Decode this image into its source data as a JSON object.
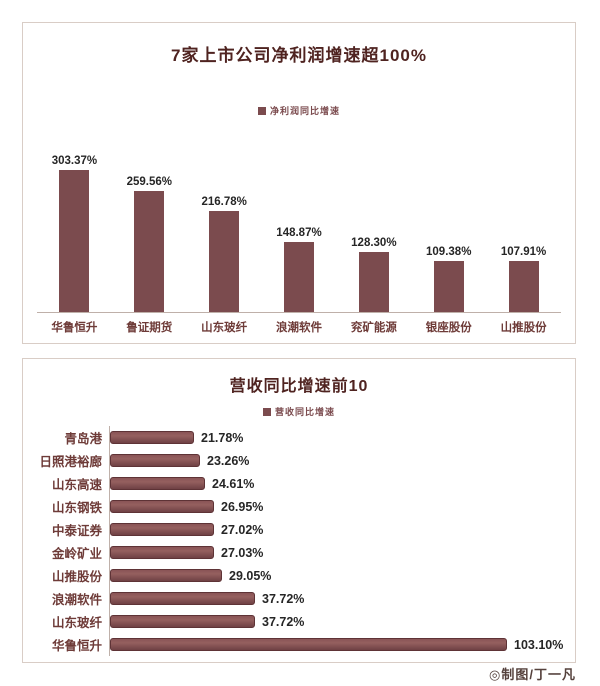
{
  "colors": {
    "bar": "#7b4b4e",
    "title": "#4f2320",
    "axis_label": "#6e3b38",
    "value_label": "#262626",
    "panel_border": "#d9cdc6",
    "axis_line": "#bfb0a9",
    "footer": "#55413c"
  },
  "chart_data": [
    {
      "type": "bar",
      "orientation": "vertical",
      "title": "7家上市公司净利润增速超100%",
      "legend": "净利润同比增速",
      "legend_position": "top-center",
      "grid": false,
      "categories": [
        "华鲁恒升",
        "鲁证期货",
        "山东玻纤",
        "浪潮软件",
        "兖矿能源",
        "银座股份",
        "山推股份"
      ],
      "values": [
        303.37,
        259.56,
        216.78,
        148.87,
        128.3,
        109.38,
        107.91
      ],
      "value_labels": [
        "303.37%",
        "259.56%",
        "216.78%",
        "148.87%",
        "128.30%",
        "109.38%",
        "107.91%"
      ],
      "ylim": [
        0,
        320
      ],
      "xlabel": "",
      "ylabel": ""
    },
    {
      "type": "bar",
      "orientation": "horizontal",
      "title": "营收同比增速前10",
      "legend": "营收同比增速",
      "legend_position": "top-center",
      "grid": false,
      "categories": [
        "青岛港",
        "日照港裕廊",
        "山东高速",
        "山东钢铁",
        "中泰证券",
        "金岭矿业",
        "山推股份",
        "浪潮软件",
        "山东玻纤",
        "华鲁恒升"
      ],
      "values": [
        21.78,
        23.26,
        24.61,
        26.95,
        27.02,
        27.03,
        29.05,
        37.72,
        37.72,
        103.1
      ],
      "value_labels": [
        "21.78%",
        "23.26%",
        "24.61%",
        "26.95%",
        "27.02%",
        "27.03%",
        "29.05%",
        "37.72%",
        "37.72%",
        "103.10%"
      ],
      "xlim": [
        0,
        107
      ],
      "xlabel": "",
      "ylabel": ""
    }
  ],
  "footer": {
    "credit": "◎制图/丁一凡"
  }
}
